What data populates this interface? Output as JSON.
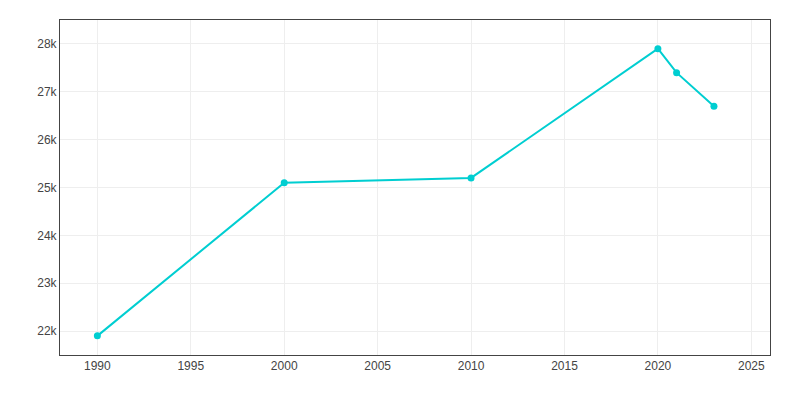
{
  "chart_data": {
    "type": "line",
    "x": [
      1990,
      2000,
      2010,
      2020,
      2021,
      2023
    ],
    "values": [
      21900,
      25100,
      25200,
      27900,
      27400,
      26700
    ],
    "color": "#00CED1",
    "marker": "circle",
    "xlim": [
      1988,
      2026
    ],
    "xticks": [
      1990,
      1995,
      2000,
      2005,
      2010,
      2015,
      2020,
      2025
    ],
    "ylim": [
      21500,
      28500
    ],
    "yticks": [
      {
        "value": 22000,
        "label": "22k"
      },
      {
        "value": 23000,
        "label": "23k"
      },
      {
        "value": 24000,
        "label": "24k"
      },
      {
        "value": 25000,
        "label": "25k"
      },
      {
        "value": 26000,
        "label": "26k"
      },
      {
        "value": 27000,
        "label": "27k"
      },
      {
        "value": 28000,
        "label": "28k"
      }
    ],
    "grid": true
  }
}
